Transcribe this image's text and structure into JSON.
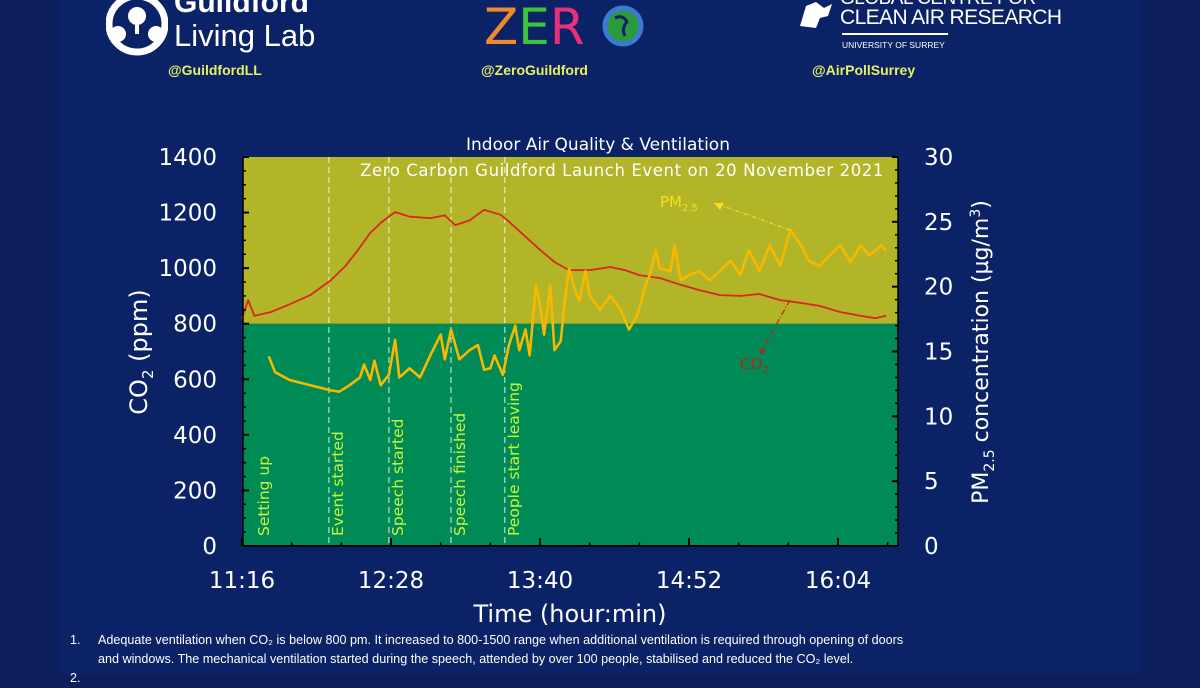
{
  "header": {
    "logos": [
      {
        "name": "Guildford Living Lab",
        "line1": "Guildford",
        "line2": "Living Lab",
        "handle": "@GuildfordLL"
      },
      {
        "name": "ZERO",
        "letters": [
          "Z",
          "E",
          "R"
        ],
        "letter_colors": [
          "#f08a2c",
          "#3cc43c",
          "#e8307a"
        ],
        "handle": "@ZeroGuildford"
      },
      {
        "name": "Global Centre for Clean Air Research",
        "line1": "GLOBAL CENTRE FOR",
        "line2": "CLEAN AIR RESEARCH",
        "line3": "UNIVERSITY OF SURREY",
        "handle": "@AirPollSurrey"
      }
    ]
  },
  "chart_data": {
    "type": "line",
    "title": "Indoor Air Quality & Ventilation",
    "subtitle": "Zero Carbon Guildford Launch Event on 20 November 2021",
    "xlabel": "Time (hour:min)",
    "ylabel_left": "CO2 (ppm)",
    "ylabel_right": "PM2.5 concentration (µg/m3)",
    "xlim": [
      "11:16",
      "16:33"
    ],
    "xticks": [
      "11:16",
      "12:28",
      "13:40",
      "14:52",
      "16:04"
    ],
    "ylim_left": [
      0,
      1400
    ],
    "yticks_left": [
      0,
      200,
      400,
      600,
      800,
      1000,
      1200,
      1400
    ],
    "ylim_right": [
      0,
      30
    ],
    "yticks_right": [
      0,
      5,
      10,
      15,
      20,
      25,
      30
    ],
    "bands": [
      {
        "from": 0,
        "to": 800,
        "color": "#008a55",
        "axis": "left"
      },
      {
        "from": 800,
        "to": 1400,
        "color": "#b2b528",
        "axis": "left"
      }
    ],
    "events": [
      {
        "time": "11:29",
        "label": "Setting up",
        "line": false
      },
      {
        "time": "11:58",
        "label": "Event started",
        "line": true
      },
      {
        "time": "12:27",
        "label": "Speech started",
        "line": true
      },
      {
        "time": "12:57",
        "label": "Speech finished",
        "line": true
      },
      {
        "time": "13:23",
        "label": "People start leaving",
        "line": true
      }
    ],
    "series": [
      {
        "name": "CO2",
        "axis": "left",
        "color": "#d8281a",
        "x": [
          "11:16",
          "11:19",
          "11:22",
          "11:30",
          "11:39",
          "11:49",
          "11:59",
          "12:06",
          "12:11",
          "12:18",
          "12:23",
          "12:30",
          "12:37",
          "12:47",
          "12:54",
          "12:59",
          "13:06",
          "13:13",
          "13:21",
          "13:25",
          "13:33",
          "13:40",
          "13:47",
          "13:54",
          "14:04",
          "14:14",
          "14:21",
          "14:28",
          "14:38",
          "14:48",
          "14:57",
          "15:07",
          "15:17",
          "15:26",
          "15:36",
          "15:46",
          "15:55",
          "16:05",
          "16:15",
          "16:22",
          "16:27"
        ],
        "y": [
          820,
          885,
          828,
          842,
          870,
          903,
          957,
          1008,
          1055,
          1127,
          1163,
          1202,
          1185,
          1180,
          1190,
          1155,
          1172,
          1210,
          1192,
          1167,
          1113,
          1066,
          1022,
          993,
          993,
          1004,
          993,
          975,
          964,
          940,
          921,
          903,
          900,
          907,
          885,
          875,
          864,
          842,
          828,
          820,
          828
        ]
      },
      {
        "name": "PM2.5",
        "axis": "right",
        "color": "#f7b800",
        "x": [
          "11:29",
          "11:32",
          "11:39",
          "11:49",
          "11:59",
          "12:03",
          "12:08",
          "12:13",
          "12:15",
          "12:18",
          "12:20",
          "12:23",
          "12:27",
          "12:30",
          "12:32",
          "12:37",
          "12:42",
          "12:47",
          "12:52",
          "12:54",
          "12:57",
          "13:01",
          "13:06",
          "13:10",
          "13:13",
          "13:16",
          "13:18",
          "13:22",
          "13:25",
          "13:28",
          "13:30",
          "13:33",
          "13:35",
          "13:38",
          "13:40",
          "13:42",
          "13:45",
          "13:47",
          "13:50",
          "13:52",
          "13:54",
          "13:57",
          "13:59",
          "14:02",
          "14:04",
          "14:09",
          "14:14",
          "14:19",
          "14:23",
          "14:27",
          "14:31",
          "14:33",
          "14:36",
          "14:38",
          "14:43",
          "14:45",
          "14:48",
          "14:52",
          "14:57",
          "15:02",
          "15:07",
          "15:12",
          "15:17",
          "15:19",
          "15:21",
          "15:26",
          "15:31",
          "15:36",
          "15:41",
          "15:46",
          "15:50",
          "15:55",
          "16:00",
          "16:05",
          "16:10",
          "16:15",
          "16:19",
          "16:25",
          "16:27"
        ],
        "y": [
          14.6,
          13.4,
          12.8,
          12.4,
          12.0,
          11.9,
          12.4,
          13.0,
          14.0,
          12.8,
          14.3,
          12.4,
          13.2,
          15.9,
          13.0,
          13.7,
          13.0,
          14.7,
          16.3,
          14.4,
          16.7,
          14.4,
          15.1,
          15.5,
          13.6,
          13.7,
          14.7,
          13.2,
          15.5,
          17.0,
          15.1,
          16.7,
          14.7,
          20.1,
          18.6,
          16.3,
          20.1,
          15.1,
          15.8,
          18.9,
          21.4,
          19.7,
          18.9,
          21.2,
          19.3,
          18.2,
          19.3,
          18.2,
          16.7,
          17.8,
          20.1,
          20.9,
          22.8,
          21.4,
          21.2,
          23.2,
          20.5,
          20.9,
          21.2,
          20.5,
          21.2,
          22.0,
          20.9,
          22.0,
          22.8,
          21.2,
          23.2,
          21.6,
          24.4,
          23.2,
          22.0,
          21.6,
          22.4,
          23.2,
          21.9,
          23.2,
          22.4,
          23.2,
          22.8
        ]
      }
    ],
    "annotations": [
      {
        "text": "PM2.5",
        "color": "#f7e020",
        "points_to": "PM2.5"
      },
      {
        "text": "CO2",
        "color": "#c0201a",
        "points_to": "CO2"
      }
    ],
    "colors": {
      "background": "#0b2266",
      "event_label": "#c8f53a",
      "event_line": "#ffffff"
    }
  },
  "notes": [
    {
      "num": "1.",
      "line1": "Adequate ventilation when CO₂ is below 800 pm. It increased to 800-1500 range when additional ventilation is required through opening of doors",
      "line2": "and windows. The mechanical ventilation started during the speech, attended by over 100 people, stabilised and reduced the CO₂ level."
    },
    {
      "num": "2."
    }
  ]
}
